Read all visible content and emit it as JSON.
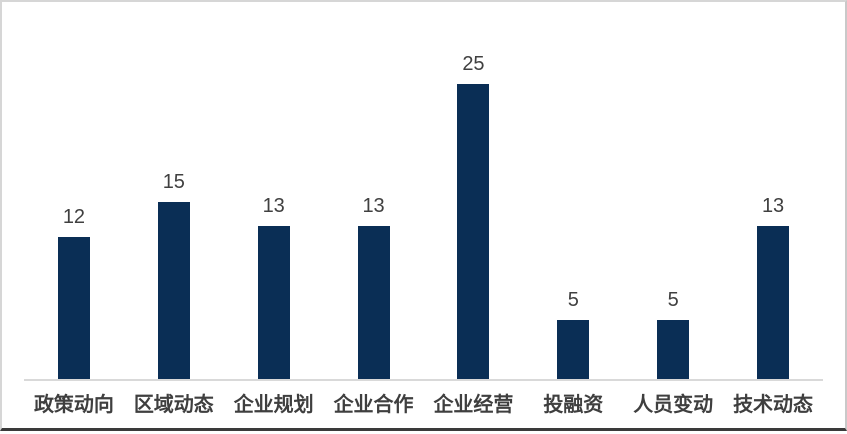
{
  "chart_data": {
    "type": "bar",
    "title": "",
    "xlabel": "",
    "ylabel": "",
    "categories": [
      "政策动向",
      "区域动态",
      "企业规划",
      "企业合作",
      "企业经营",
      "投融资",
      "人员变动",
      "技术动态"
    ],
    "values": [
      12,
      15,
      13,
      13,
      25,
      5,
      5,
      13
    ],
    "ylim": [
      0,
      25
    ],
    "grid": "off",
    "legend": "none",
    "data_labels_shown": true,
    "colors": {
      "bar": "#0a2e55",
      "data_label": "#404040",
      "category_label": "#3f3f3f",
      "axis_line": "#d9d9d9",
      "frame_border": "#d6d6d6",
      "bottom_rule": "#3a3a3a"
    }
  }
}
